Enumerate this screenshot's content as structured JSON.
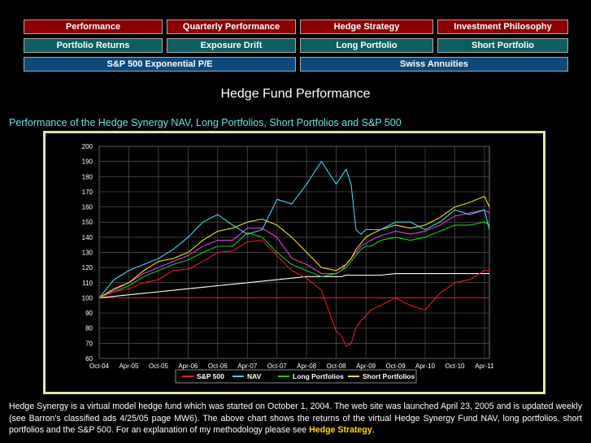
{
  "nav": {
    "row1": [
      "Performance",
      "Quarterly Performance",
      "Hedge Strategy",
      "Investment Philosophy"
    ],
    "row2": [
      "Portfolio Returns",
      "Exposure Drift",
      "Long Portfolio",
      "Short Portfolio"
    ],
    "row3": [
      "S&P 500 Exponential P/E",
      "Swiss Annuities"
    ]
  },
  "page_title": "Hedge Fund Performance",
  "chart_subtitle": "Performance of the Hedge Synergy NAV, Long Portfolios, Short Portfolios and S&P 500",
  "description": {
    "text": "Hedge Synergy is a virtual model hedge fund which was started on October 1, 2004. The web site was launched April 23, 2005 and is updated weekly (see Barron's classified ads 4/25/05 page MW6). The above chart shows the returns of the virtual Hedge Synergy Fund NAV, long portfolios, short portfolios and the S&P 500. For an explanation of my methodology please see ",
    "link": "Hedge Strategy",
    "end": "."
  },
  "colors": {
    "sp500": "#e02020",
    "nav": "#40d8f0",
    "long": "#20c820",
    "short": "#f0e020",
    "magenta": "#e040e0",
    "white_series": "#ffffff",
    "frame": "#e8e3a0"
  },
  "chart_data": {
    "type": "line",
    "ylim": [
      60,
      200
    ],
    "yticks": [
      60,
      70,
      80,
      90,
      100,
      110,
      120,
      130,
      140,
      150,
      160,
      170,
      180,
      190,
      200
    ],
    "xticks": [
      "Oct-04",
      "Apr-05",
      "Oct-05",
      "Apr-06",
      "Oct-06",
      "Apr-07",
      "Oct-07",
      "Apr-08",
      "Oct-08",
      "Apr-09",
      "Oct-09",
      "Apr-10",
      "Oct-10",
      "Apr-11"
    ],
    "legend": [
      "S&P 500",
      "NAV",
      "Long Portfolios",
      "Short Portfolios"
    ],
    "legend_position": "bottom",
    "x_months_from_start": [
      0,
      3,
      6,
      9,
      12,
      15,
      18,
      21,
      24,
      27,
      30,
      33,
      36,
      39,
      42,
      45,
      48,
      49,
      50,
      51,
      52,
      53,
      54,
      55,
      57,
      60,
      63,
      66,
      69,
      72,
      75,
      78,
      79
    ],
    "series": [
      {
        "name": "S&P 500",
        "color": "#e02020",
        "values": [
          100,
          104,
          106,
          110,
          112,
          118,
          119,
          124,
          130,
          131,
          137,
          138,
          128,
          118,
          113,
          105,
          78,
          75,
          68,
          70,
          80,
          85,
          88,
          92,
          95,
          100,
          95,
          92,
          103,
          110,
          112,
          118,
          118
        ]
      },
      {
        "name": "NAV",
        "color": "#40d8f0",
        "values": [
          100,
          112,
          118,
          122,
          126,
          132,
          140,
          150,
          155,
          148,
          142,
          145,
          165,
          162,
          175,
          190,
          175,
          180,
          185,
          175,
          145,
          142,
          145,
          145,
          145,
          150,
          150,
          145,
          150,
          158,
          155,
          158,
          145
        ]
      },
      {
        "name": "Long Portfolios",
        "color": "#20c820",
        "values": [
          100,
          104,
          108,
          114,
          118,
          122,
          125,
          130,
          134,
          134,
          143,
          140,
          130,
          122,
          118,
          114,
          116,
          118,
          120,
          124,
          128,
          132,
          134,
          134,
          138,
          140,
          138,
          140,
          144,
          148,
          148,
          150,
          148
        ]
      },
      {
        "name": "Short Portfolios",
        "color": "#f0e020",
        "values": [
          100,
          106,
          110,
          118,
          124,
          126,
          130,
          138,
          144,
          146,
          150,
          152,
          148,
          140,
          130,
          120,
          118,
          120,
          122,
          126,
          132,
          136,
          140,
          142,
          145,
          148,
          146,
          148,
          153,
          160,
          163,
          167,
          160
        ]
      },
      {
        "name": "",
        "color": "#e040e0",
        "values": [
          100,
          105,
          110,
          116,
          120,
          124,
          128,
          134,
          138,
          138,
          146,
          146,
          140,
          126,
          122,
          116,
          116,
          118,
          122,
          126,
          130,
          134,
          136,
          138,
          141,
          144,
          142,
          144,
          148,
          154,
          156,
          158,
          156
        ]
      },
      {
        "name": "",
        "color": "#ffffff",
        "values": [
          100,
          101,
          102,
          103,
          104,
          105,
          106,
          107,
          108,
          109,
          110,
          111,
          112,
          113,
          114,
          114,
          114,
          114,
          115,
          115,
          115,
          115,
          115,
          115,
          115,
          116,
          116,
          116,
          116,
          116,
          116,
          116,
          116
        ]
      }
    ]
  }
}
